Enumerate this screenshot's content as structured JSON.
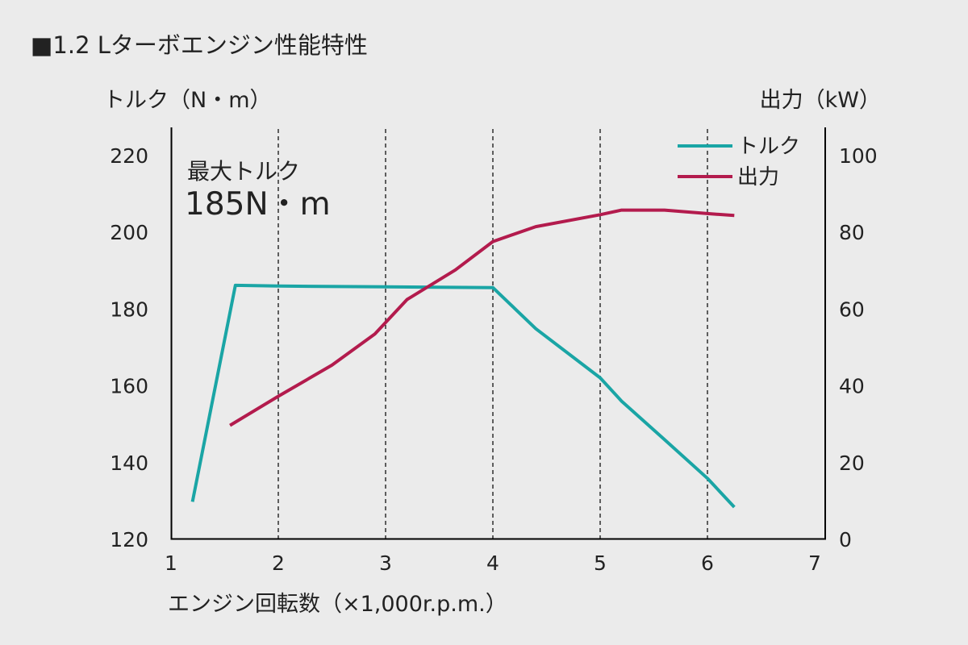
{
  "chart_data": {
    "type": "line",
    "title": "■1.2 Lターボエンジン性能特性",
    "xlabel": "エンジン回転数（×1,000r.p.m.）",
    "ylabel_left": "トルク（N・m）",
    "ylabel_right": "出力（kW）",
    "xlim": [
      1,
      7
    ],
    "ylim_left": [
      120,
      220
    ],
    "ylim_right": [
      0,
      100
    ],
    "x_ticks": [
      "1",
      "2",
      "3",
      "4",
      "5",
      "6",
      "7"
    ],
    "y_left_ticks": [
      "120",
      "140",
      "160",
      "180",
      "200",
      "220"
    ],
    "y_right_ticks": [
      "0",
      "20",
      "40",
      "60",
      "80",
      "100"
    ],
    "grid": "vertical-dashed",
    "legend_position": "top-right",
    "annotation": {
      "line1": "最大トルク",
      "line2": "185N・m"
    },
    "series": [
      {
        "name": "トルク",
        "axis": "left",
        "color": "#1aa5a5",
        "points": [
          [
            1.2,
            129.8
          ],
          [
            1.6,
            186.2
          ],
          [
            2.0,
            186.0
          ],
          [
            3.0,
            185.8
          ],
          [
            4.0,
            185.6
          ],
          [
            4.4,
            174.9
          ],
          [
            5.0,
            162.1
          ],
          [
            5.2,
            156.0
          ],
          [
            5.6,
            146.0
          ],
          [
            6.0,
            135.9
          ],
          [
            6.25,
            128.4
          ]
        ]
      },
      {
        "name": "出力",
        "axis": "right",
        "color": "#b31b4d",
        "points": [
          [
            1.55,
            29.7
          ],
          [
            2.0,
            37.3
          ],
          [
            2.5,
            45.4
          ],
          [
            2.9,
            53.5
          ],
          [
            3.2,
            62.5
          ],
          [
            3.65,
            70.2
          ],
          [
            4.0,
            77.6
          ],
          [
            4.4,
            81.5
          ],
          [
            5.0,
            84.6
          ],
          [
            5.2,
            85.8
          ],
          [
            5.6,
            85.8
          ],
          [
            6.0,
            84.9
          ],
          [
            6.25,
            84.4
          ]
        ]
      }
    ]
  }
}
